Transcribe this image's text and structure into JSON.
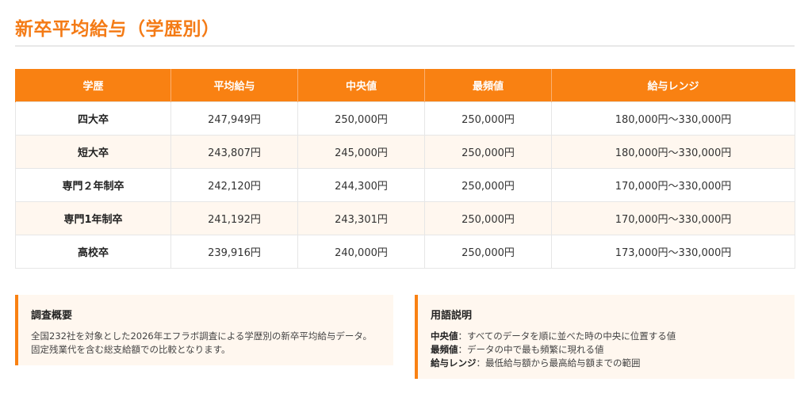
{
  "page": {
    "title": "新卒平均給与（学歴別）"
  },
  "colors": {
    "accent": "#f98112",
    "title": "#f47b16",
    "alt_row": "#fff7ef",
    "border": "#e6e6e6"
  },
  "table": {
    "headers": [
      "学歴",
      "平均給与",
      "中央値",
      "最頻値",
      "給与レンジ"
    ],
    "rows": [
      {
        "level": "四大卒",
        "average": "247,949円",
        "median": "250,000円",
        "mode": "250,000円",
        "range": "180,000円〜330,000円"
      },
      {
        "level": "短大卒",
        "average": "243,807円",
        "median": "245,000円",
        "mode": "250,000円",
        "range": "180,000円〜330,000円"
      },
      {
        "level": "専門２年制卒",
        "average": "242,120円",
        "median": "244,300円",
        "mode": "250,000円",
        "range": "170,000円〜330,000円"
      },
      {
        "level": "専門1年制卒",
        "average": "241,192円",
        "median": "243,301円",
        "mode": "250,000円",
        "range": "170,000円〜330,000円"
      },
      {
        "level": "高校卒",
        "average": "239,916円",
        "median": "240,000円",
        "mode": "250,000円",
        "range": "173,000円〜330,000円"
      }
    ]
  },
  "survey": {
    "heading": "調査概要",
    "lines": [
      "全国232社を対象とした2026年エフラボ調査による学歴別の新卒平均給与データ。",
      "固定残業代を含む総支給額での比較となります。"
    ]
  },
  "glossary": {
    "heading": "用語説明",
    "items": [
      {
        "term": "中央値",
        "description": "：すべてのデータを順に並べた時の中央に位置する値"
      },
      {
        "term": "最頻値",
        "description": "：データの中で最も頻繁に現れる値"
      },
      {
        "term": "給与レンジ",
        "description": "：最低給与額から最高給与額までの範囲"
      }
    ]
  }
}
